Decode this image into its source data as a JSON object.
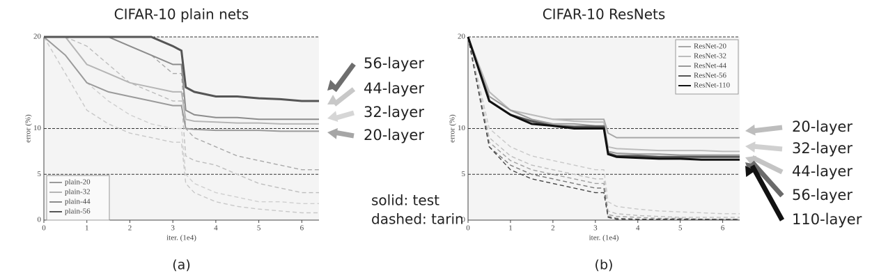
{
  "chart_data": [
    {
      "type": "line",
      "title": "CIFAR-10 plain nets",
      "x_label": "iter. (1e4)",
      "y_label": "error (%)",
      "caption": "(a)",
      "x": [
        0,
        0.5,
        1,
        1.5,
        2,
        2.5,
        3,
        3.2,
        3.3,
        3.5,
        4,
        4.5,
        5,
        5.5,
        6,
        6.4
      ],
      "xlim": [
        0,
        6.4
      ],
      "xticks": [
        0,
        1,
        2,
        3,
        4,
        5,
        6
      ],
      "ylim": [
        0,
        20
      ],
      "yticks": [
        0,
        5,
        10,
        20
      ],
      "grid": true,
      "legend": "lower left",
      "series": [
        {
          "name": "plain-20",
          "color": "#9a9a9a",
          "style": "solid",
          "values": [
            20,
            18,
            15,
            14,
            13.5,
            13,
            12.5,
            12.5,
            10,
            9.9,
            9.8,
            9.8,
            9.8,
            9.7,
            9.7,
            9.7
          ]
        },
        {
          "name": "plain-32",
          "color": "#b5b5b5",
          "style": "solid",
          "values": [
            20,
            20,
            17,
            16,
            15,
            14.5,
            14,
            14,
            11,
            10.8,
            10.7,
            10.6,
            10.6,
            10.5,
            10.5,
            10.5
          ]
        },
        {
          "name": "plain-44",
          "color": "#8c8c8c",
          "style": "solid",
          "values": [
            20,
            20,
            20,
            20,
            19,
            18,
            17,
            17,
            12,
            11.5,
            11.2,
            11.2,
            11,
            11,
            11,
            11
          ]
        },
        {
          "name": "plain-56",
          "color": "#555555",
          "style": "solid",
          "values": [
            20,
            20,
            20,
            20,
            20,
            20,
            19,
            18.5,
            14.5,
            14,
            13.5,
            13.5,
            13.3,
            13.2,
            13,
            13
          ]
        },
        {
          "color": "#c8c8c8",
          "style": "dashed",
          "values": [
            20,
            16,
            12,
            10.5,
            9.5,
            9,
            8.5,
            8.5,
            4,
            3,
            2,
            1.5,
            1.2,
            1,
            0.8,
            0.8
          ]
        },
        {
          "color": "#cfcfcf",
          "style": "dashed",
          "values": [
            20,
            18,
            15,
            13,
            11.5,
            10.5,
            10,
            10,
            5,
            4,
            3,
            2.5,
            2,
            2,
            1.8,
            1.8
          ]
        },
        {
          "color": "#bdbdbd",
          "style": "dashed",
          "values": [
            20,
            20,
            19,
            17,
            15,
            14,
            13,
            13,
            7,
            6.5,
            6,
            5,
            4,
            3.5,
            3,
            3
          ]
        },
        {
          "color": "#a8a8a8",
          "style": "dashed",
          "values": [
            20,
            20,
            20,
            20,
            19,
            18,
            16,
            16,
            10,
            9,
            8,
            7,
            6.5,
            6,
            5.5,
            5.5
          ]
        }
      ],
      "annotations": [
        {
          "text": "56-layer",
          "color": "#6e6e6e"
        },
        {
          "text": "44-layer",
          "color": "#c8c8c8"
        },
        {
          "text": "32-layer",
          "color": "#d6d6d6"
        },
        {
          "text": "20-layer",
          "color": "#a6a6a6"
        }
      ],
      "notes": [
        "solid: test",
        "dashed: tarin"
      ]
    },
    {
      "type": "line",
      "title": "CIFAR-10 ResNets",
      "x_label": "iter. (1e4)",
      "y_label": "error (%)",
      "caption": "(b)",
      "x": [
        0,
        0.5,
        1,
        1.5,
        2,
        2.5,
        3,
        3.2,
        3.3,
        3.5,
        4,
        4.5,
        5,
        5.5,
        6,
        6.4
      ],
      "xlim": [
        0,
        6.4
      ],
      "xticks": [
        0,
        1,
        2,
        3,
        4,
        5,
        6
      ],
      "ylim": [
        0,
        20
      ],
      "yticks": [
        0,
        5,
        10,
        20
      ],
      "grid": true,
      "legend": "upper right",
      "series": [
        {
          "name": "ResNet-20",
          "color": "#a8a8a8",
          "style": "solid",
          "values": [
            20,
            14,
            12,
            11.5,
            11,
            11,
            11,
            11,
            9.5,
            9,
            9,
            9,
            9,
            9,
            9,
            9
          ]
        },
        {
          "name": "ResNet-32",
          "color": "#bcbcbc",
          "style": "solid",
          "values": [
            20,
            14,
            12,
            11.5,
            11,
            10.8,
            10.7,
            10.7,
            8,
            7.8,
            7.7,
            7.6,
            7.6,
            7.6,
            7.5,
            7.5
          ]
        },
        {
          "name": "ResNet-44",
          "color": "#9a9a9a",
          "style": "solid",
          "values": [
            20,
            13.5,
            12,
            11,
            10.5,
            10.5,
            10.3,
            10.3,
            7.5,
            7.3,
            7.2,
            7.2,
            7.1,
            7.1,
            7.1,
            7.1
          ]
        },
        {
          "name": "ResNet-56",
          "color": "#555555",
          "style": "solid",
          "values": [
            20,
            13,
            11.5,
            10.8,
            10.3,
            10.2,
            10.2,
            10.2,
            7.3,
            7,
            7,
            6.9,
            6.9,
            6.9,
            6.9,
            6.9
          ]
        },
        {
          "name": "ResNet-110",
          "color": "#111111",
          "style": "solid",
          "values": [
            20,
            13,
            11.5,
            10.5,
            10.3,
            10,
            10,
            10,
            7.2,
            6.9,
            6.8,
            6.7,
            6.7,
            6.6,
            6.6,
            6.6
          ]
        },
        {
          "color": "#c8c8c8",
          "style": "dashed",
          "values": [
            20,
            10,
            8,
            7,
            6.5,
            6,
            5.5,
            5.5,
            2,
            1.5,
            1.2,
            1,
            0.9,
            0.8,
            0.7,
            0.7
          ]
        },
        {
          "color": "#bdbdbd",
          "style": "dashed",
          "values": [
            20,
            9,
            7,
            6,
            5.5,
            5,
            4.5,
            4.5,
            1,
            0.7,
            0.5,
            0.4,
            0.3,
            0.3,
            0.3,
            0.3
          ]
        },
        {
          "color": "#a0a0a0",
          "style": "dashed",
          "values": [
            20,
            8.5,
            6.5,
            5.5,
            5,
            4.5,
            4,
            4,
            0.6,
            0.4,
            0.3,
            0.2,
            0.2,
            0.1,
            0.1,
            0.1
          ]
        },
        {
          "color": "#777777",
          "style": "dashed",
          "values": [
            20,
            8,
            6,
            5,
            4.5,
            4,
            3.5,
            3.5,
            0.4,
            0.2,
            0.1,
            0.1,
            0.1,
            0.1,
            0.1,
            0.1
          ]
        },
        {
          "color": "#444444",
          "style": "dashed",
          "values": [
            20,
            8,
            5.5,
            4.5,
            4,
            3.5,
            3,
            3,
            0.3,
            0.1,
            0.1,
            0.1,
            0.1,
            0.1,
            0.05,
            0.05
          ]
        }
      ],
      "annotations": [
        {
          "text": "20-layer",
          "color": "#bdbdbd"
        },
        {
          "text": "32-layer",
          "color": "#d0d0d0"
        },
        {
          "text": "44-layer",
          "color": "#c4c4c4"
        },
        {
          "text": "56-layer",
          "color": "#6a6a6a"
        },
        {
          "text": "110-layer",
          "color": "#111111"
        }
      ]
    }
  ]
}
